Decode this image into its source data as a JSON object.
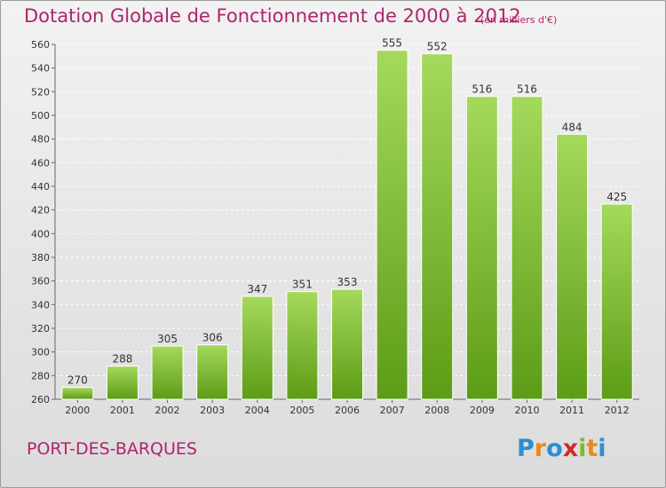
{
  "title": "Dotation Globale de Fonctionnement de 2000 à 2012",
  "subtitle": "(en milliers d'€)",
  "commune": "PORT-DES-BARQUES",
  "logo": {
    "text": "Proxiti"
  },
  "colors": {
    "title": "#b0246a",
    "bar_top": "#9fd356",
    "bar_bottom": "#5fa018"
  },
  "chart_data": {
    "type": "bar",
    "categories": [
      "2000",
      "2001",
      "2002",
      "2003",
      "2004",
      "2005",
      "2006",
      "2007",
      "2008",
      "2009",
      "2010",
      "2011",
      "2012"
    ],
    "values": [
      270,
      288,
      305,
      306,
      347,
      351,
      353,
      555,
      552,
      516,
      516,
      484,
      425
    ],
    "ylim": [
      260,
      560
    ],
    "yticks": [
      260,
      280,
      300,
      320,
      340,
      360,
      380,
      400,
      420,
      440,
      460,
      480,
      500,
      520,
      540,
      560
    ],
    "xlabel": "",
    "ylabel": "",
    "grid": true
  }
}
